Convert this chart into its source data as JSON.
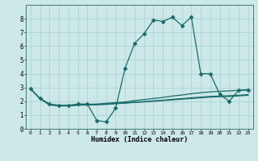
{
  "xlabel": "Humidex (Indice chaleur)",
  "xlim": [
    -0.5,
    23.5
  ],
  "ylim": [
    0,
    9
  ],
  "yticks": [
    0,
    1,
    2,
    3,
    4,
    5,
    6,
    7,
    8
  ],
  "xticks": [
    0,
    1,
    2,
    3,
    4,
    5,
    6,
    7,
    8,
    9,
    10,
    11,
    12,
    13,
    14,
    15,
    16,
    17,
    18,
    19,
    20,
    21,
    22,
    23
  ],
  "bg_color": "#cce8e8",
  "grid_color": "#aed4d4",
  "line_color": "#1a6b6b",
  "series": [
    {
      "x": [
        0,
        1,
        2,
        3,
        4,
        5,
        6,
        7,
        8,
        9,
        10,
        11,
        12,
        13,
        14,
        15,
        16,
        17,
        18,
        19,
        20,
        21,
        22,
        23
      ],
      "y": [
        2.9,
        2.2,
        1.8,
        1.7,
        1.7,
        1.8,
        1.8,
        0.6,
        0.5,
        1.5,
        4.4,
        6.2,
        6.9,
        7.9,
        7.8,
        8.1,
        7.5,
        8.1,
        4.0,
        4.0,
        2.5,
        2.0,
        2.8,
        2.8
      ],
      "marker": "D",
      "markersize": 2.5,
      "linewidth": 0.9
    },
    {
      "x": [
        0,
        1,
        2,
        3,
        4,
        5,
        6,
        7,
        8,
        9,
        10,
        11,
        12,
        13,
        14,
        15,
        16,
        17,
        18,
        19,
        20,
        21,
        22,
        23
      ],
      "y": [
        2.9,
        2.2,
        1.78,
        1.7,
        1.7,
        1.75,
        1.78,
        1.8,
        1.85,
        1.9,
        1.95,
        2.05,
        2.12,
        2.2,
        2.28,
        2.38,
        2.45,
        2.55,
        2.62,
        2.68,
        2.72,
        2.75,
        2.8,
        2.85
      ],
      "marker": null,
      "markersize": 0,
      "linewidth": 0.9
    },
    {
      "x": [
        0,
        1,
        2,
        3,
        4,
        5,
        6,
        7,
        8,
        9,
        10,
        11,
        12,
        13,
        14,
        15,
        16,
        17,
        18,
        19,
        20,
        21,
        22,
        23
      ],
      "y": [
        2.9,
        2.2,
        1.75,
        1.68,
        1.68,
        1.73,
        1.75,
        1.77,
        1.8,
        1.85,
        1.89,
        1.94,
        1.98,
        2.03,
        2.08,
        2.14,
        2.19,
        2.25,
        2.3,
        2.35,
        2.38,
        2.4,
        2.44,
        2.48
      ],
      "marker": null,
      "markersize": 0,
      "linewidth": 0.9
    },
    {
      "x": [
        0,
        1,
        2,
        3,
        4,
        5,
        6,
        7,
        8,
        9,
        10,
        11,
        12,
        13,
        14,
        15,
        16,
        17,
        18,
        19,
        20,
        21,
        22,
        23
      ],
      "y": [
        2.9,
        2.2,
        1.73,
        1.66,
        1.66,
        1.71,
        1.73,
        1.74,
        1.77,
        1.82,
        1.86,
        1.91,
        1.95,
        2.0,
        2.05,
        2.1,
        2.15,
        2.2,
        2.25,
        2.3,
        2.33,
        2.35,
        2.39,
        2.43
      ],
      "marker": null,
      "markersize": 0,
      "linewidth": 0.9
    }
  ]
}
